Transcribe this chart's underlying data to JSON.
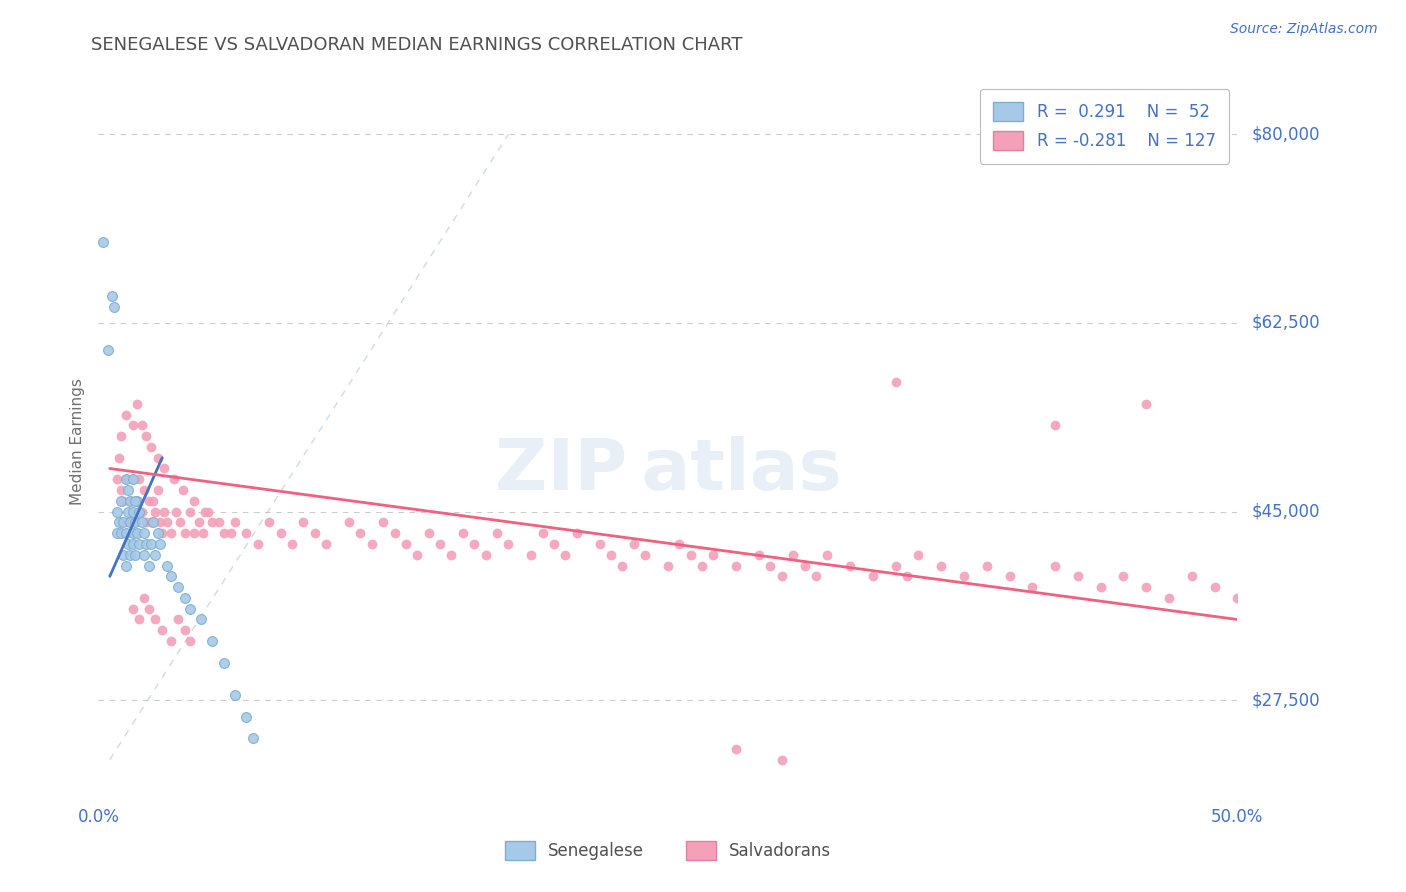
{
  "title": "SENEGALESE VS SALVADORAN MEDIAN EARNINGS CORRELATION CHART",
  "source": "Source: ZipAtlas.com",
  "ylabel": "Median Earnings",
  "xlim": [
    0.0,
    0.5
  ],
  "ylim": [
    18000,
    85000
  ],
  "yticks": [
    27500,
    45000,
    62500,
    80000
  ],
  "yticklabels": [
    "$27,500",
    "$45,000",
    "$62,500",
    "$80,000"
  ],
  "color_senegalese": "#a8c8e8",
  "color_salvadoran": "#f4a0b8",
  "color_trend_senegalese": "#4472c4",
  "color_trend_salvadoran": "#f06080",
  "color_axis_label": "#4472c4",
  "color_title": "#505050",
  "color_grid": "#cccccc",
  "color_ref_line": "#b8cce0",
  "senegalese_x": [
    0.002,
    0.004,
    0.006,
    0.007,
    0.008,
    0.008,
    0.009,
    0.01,
    0.01,
    0.011,
    0.011,
    0.012,
    0.012,
    0.013,
    0.013,
    0.014,
    0.014,
    0.015,
    0.015,
    0.015,
    0.016,
    0.016,
    0.017,
    0.017,
    0.018,
    0.018,
    0.019,
    0.02,
    0.02,
    0.021,
    0.022,
    0.023,
    0.024,
    0.025,
    0.026,
    0.027,
    0.03,
    0.032,
    0.035,
    0.038,
    0.04,
    0.045,
    0.05,
    0.055,
    0.06,
    0.065,
    0.068,
    0.012,
    0.013,
    0.014,
    0.015,
    0.016
  ],
  "senegalese_y": [
    70000,
    60000,
    65000,
    64000,
    43000,
    45000,
    44000,
    43000,
    46000,
    41000,
    44000,
    40000,
    43000,
    42000,
    45000,
    41000,
    44000,
    42000,
    45000,
    43000,
    41000,
    44000,
    43000,
    46000,
    42000,
    45000,
    44000,
    41000,
    43000,
    42000,
    40000,
    42000,
    44000,
    41000,
    43000,
    42000,
    40000,
    39000,
    38000,
    37000,
    36000,
    35000,
    33000,
    31000,
    28000,
    26000,
    24000,
    48000,
    47000,
    46000,
    48000,
    46000
  ],
  "salvadoran_x": [
    0.008,
    0.009,
    0.01,
    0.01,
    0.011,
    0.012,
    0.013,
    0.014,
    0.015,
    0.016,
    0.017,
    0.018,
    0.019,
    0.02,
    0.021,
    0.022,
    0.023,
    0.024,
    0.025,
    0.026,
    0.027,
    0.028,
    0.029,
    0.03,
    0.032,
    0.034,
    0.036,
    0.038,
    0.04,
    0.042,
    0.044,
    0.046,
    0.048,
    0.05,
    0.055,
    0.06,
    0.065,
    0.07,
    0.075,
    0.08,
    0.085,
    0.09,
    0.095,
    0.1,
    0.11,
    0.115,
    0.12,
    0.125,
    0.13,
    0.135,
    0.14,
    0.145,
    0.15,
    0.155,
    0.16,
    0.165,
    0.17,
    0.175,
    0.18,
    0.19,
    0.195,
    0.2,
    0.205,
    0.21,
    0.22,
    0.225,
    0.23,
    0.235,
    0.24,
    0.25,
    0.255,
    0.26,
    0.265,
    0.27,
    0.28,
    0.29,
    0.295,
    0.3,
    0.305,
    0.31,
    0.315,
    0.32,
    0.33,
    0.34,
    0.35,
    0.355,
    0.36,
    0.37,
    0.38,
    0.39,
    0.4,
    0.41,
    0.42,
    0.43,
    0.44,
    0.45,
    0.46,
    0.47,
    0.48,
    0.49,
    0.5,
    0.015,
    0.018,
    0.02,
    0.022,
    0.025,
    0.028,
    0.032,
    0.035,
    0.038,
    0.04,
    0.012,
    0.015,
    0.017,
    0.019,
    0.021,
    0.023,
    0.026,
    0.029,
    0.033,
    0.037,
    0.042,
    0.047,
    0.053,
    0.058,
    0.35,
    0.42,
    0.46,
    0.28,
    0.3
  ],
  "salvadoran_y": [
    48000,
    50000,
    52000,
    47000,
    46000,
    48000,
    44000,
    46000,
    48000,
    44000,
    46000,
    48000,
    45000,
    47000,
    44000,
    46000,
    44000,
    46000,
    45000,
    47000,
    44000,
    43000,
    45000,
    44000,
    43000,
    45000,
    44000,
    43000,
    45000,
    43000,
    44000,
    43000,
    45000,
    44000,
    43000,
    44000,
    43000,
    42000,
    44000,
    43000,
    42000,
    44000,
    43000,
    42000,
    44000,
    43000,
    42000,
    44000,
    43000,
    42000,
    41000,
    43000,
    42000,
    41000,
    43000,
    42000,
    41000,
    43000,
    42000,
    41000,
    43000,
    42000,
    41000,
    43000,
    42000,
    41000,
    40000,
    42000,
    41000,
    40000,
    42000,
    41000,
    40000,
    41000,
    40000,
    41000,
    40000,
    39000,
    41000,
    40000,
    39000,
    41000,
    40000,
    39000,
    40000,
    39000,
    41000,
    40000,
    39000,
    40000,
    39000,
    38000,
    40000,
    39000,
    38000,
    39000,
    38000,
    37000,
    39000,
    38000,
    37000,
    36000,
    35000,
    37000,
    36000,
    35000,
    34000,
    33000,
    35000,
    34000,
    33000,
    54000,
    53000,
    55000,
    53000,
    52000,
    51000,
    50000,
    49000,
    48000,
    47000,
    46000,
    45000,
    44000,
    43000,
    57000,
    53000,
    55000,
    23000,
    22000
  ],
  "sen_trend_x": [
    0.005,
    0.028
  ],
  "sen_trend_y": [
    39000,
    50000
  ],
  "sal_trend_x": [
    0.005,
    0.5
  ],
  "sal_trend_y": [
    49000,
    35000
  ],
  "ref_line_x": [
    0.005,
    0.18
  ],
  "ref_line_y": [
    22000,
    80000
  ]
}
